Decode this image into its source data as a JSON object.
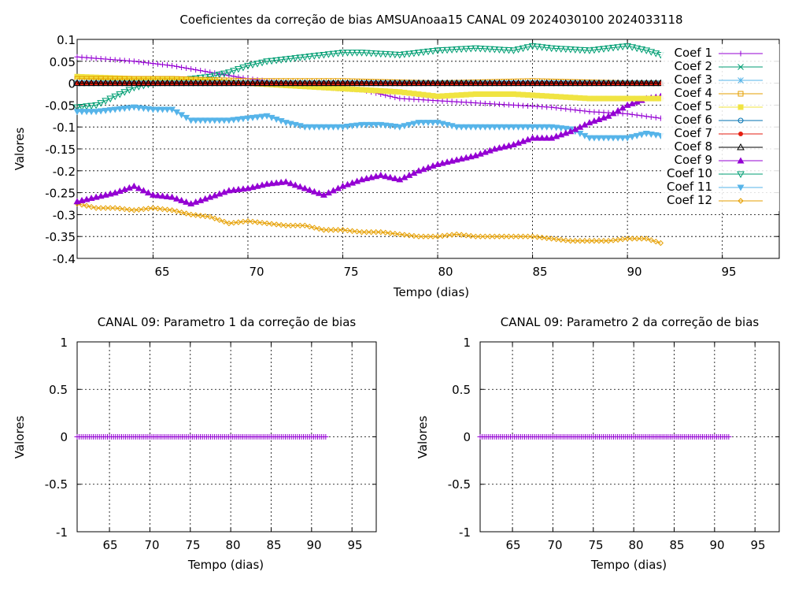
{
  "chart_data": [
    {
      "type": "line",
      "title": "Coeficientes da correção de bias AMSUAnoaa15 CANAL 09 2024030100 2024033118",
      "xlabel": "Tempo (dias)",
      "ylabel": "Valores",
      "xlim": [
        61,
        98
      ],
      "ylim": [
        -0.4,
        0.1
      ],
      "xticks": [
        "65",
        "70",
        "75",
        "80",
        "85",
        "90",
        "95"
      ],
      "yticks": [
        "0.1",
        "0.05",
        "0",
        "-0.05",
        "-0.1",
        "-0.15",
        "-0.2",
        "-0.25",
        "-0.3",
        "-0.35",
        "-0.4"
      ],
      "grid": true,
      "legend_position": "top-right",
      "x_start": 61,
      "x_end": 91.75,
      "x_step": 0.25,
      "series": [
        {
          "name": "Coef 1",
          "color": "#9400d3",
          "marker": "plus",
          "keypoints": [
            [
              61,
              0.06
            ],
            [
              64,
              0.05
            ],
            [
              66,
              0.04
            ],
            [
              68,
              0.025
            ],
            [
              70,
              0.01
            ],
            [
              72,
              0.0
            ],
            [
              74,
              -0.01
            ],
            [
              76,
              -0.015
            ],
            [
              78,
              -0.035
            ],
            [
              80,
              -0.04
            ],
            [
              82,
              -0.045
            ],
            [
              84,
              -0.05
            ],
            [
              86,
              -0.055
            ],
            [
              88,
              -0.065
            ],
            [
              90,
              -0.07
            ],
            [
              91.75,
              -0.08
            ]
          ]
        },
        {
          "name": "Coef 2",
          "color": "#009e73",
          "marker": "x",
          "keypoints": [
            [
              61,
              0.0
            ],
            [
              91.75,
              0.0
            ]
          ]
        },
        {
          "name": "Coef 3",
          "color": "#56b4e9",
          "marker": "star",
          "keypoints": [
            [
              61,
              0.0
            ],
            [
              91.75,
              0.0
            ]
          ]
        },
        {
          "name": "Coef 4",
          "color": "#e69f00",
          "marker": "square-open",
          "keypoints": [
            [
              61,
              0.01
            ],
            [
              66,
              0.01
            ],
            [
              70,
              0.005
            ],
            [
              75,
              0.005
            ],
            [
              80,
              0.0
            ],
            [
              85,
              0.005
            ],
            [
              90,
              0.0
            ],
            [
              91.75,
              0.0
            ]
          ]
        },
        {
          "name": "Coef 5",
          "color": "#f0e442",
          "marker": "square",
          "keypoints": [
            [
              61,
              0.015
            ],
            [
              64,
              0.01
            ],
            [
              66,
              0.01
            ],
            [
              68,
              0.005
            ],
            [
              70,
              0.0
            ],
            [
              72,
              -0.005
            ],
            [
              74,
              -0.01
            ],
            [
              76,
              -0.015
            ],
            [
              78,
              -0.02
            ],
            [
              80,
              -0.03
            ],
            [
              82,
              -0.025
            ],
            [
              84,
              -0.025
            ],
            [
              86,
              -0.03
            ],
            [
              88,
              -0.035
            ],
            [
              90,
              -0.035
            ],
            [
              91.75,
              -0.035
            ]
          ]
        },
        {
          "name": "Coef 6",
          "color": "#0072b2",
          "marker": "circle",
          "keypoints": [
            [
              61,
              0.0
            ],
            [
              91.75,
              0.0
            ]
          ]
        },
        {
          "name": "Coef 7",
          "color": "#e51e10",
          "marker": "circle-filled",
          "keypoints": [
            [
              61,
              0.0
            ],
            [
              91.75,
              0.0
            ]
          ]
        },
        {
          "name": "Coef 8",
          "color": "#000000",
          "marker": "triangle-open",
          "keypoints": [
            [
              61,
              0.0
            ],
            [
              91.75,
              0.0
            ]
          ]
        },
        {
          "name": "Coef 9",
          "color": "#9400d3",
          "marker": "triangle",
          "keypoints": [
            [
              61,
              -0.27
            ],
            [
              62,
              -0.26
            ],
            [
              63,
              -0.25
            ],
            [
              64,
              -0.235
            ],
            [
              65,
              -0.255
            ],
            [
              66,
              -0.26
            ],
            [
              67,
              -0.275
            ],
            [
              68,
              -0.26
            ],
            [
              69,
              -0.245
            ],
            [
              70,
              -0.24
            ],
            [
              71,
              -0.23
            ],
            [
              72,
              -0.225
            ],
            [
              73,
              -0.24
            ],
            [
              74,
              -0.255
            ],
            [
              75,
              -0.235
            ],
            [
              76,
              -0.22
            ],
            [
              77,
              -0.21
            ],
            [
              78,
              -0.22
            ],
            [
              79,
              -0.2
            ],
            [
              80,
              -0.185
            ],
            [
              81,
              -0.175
            ],
            [
              82,
              -0.165
            ],
            [
              83,
              -0.15
            ],
            [
              84,
              -0.14
            ],
            [
              85,
              -0.125
            ],
            [
              86,
              -0.125
            ],
            [
              87,
              -0.11
            ],
            [
              88,
              -0.09
            ],
            [
              89,
              -0.075
            ],
            [
              90,
              -0.05
            ],
            [
              91,
              -0.035
            ],
            [
              91.75,
              -0.03
            ]
          ]
        },
        {
          "name": "Coef 10",
          "color": "#009e73",
          "marker": "triangle-down-open",
          "keypoints": [
            [
              61,
              -0.055
            ],
            [
              62,
              -0.05
            ],
            [
              63,
              -0.03
            ],
            [
              64,
              -0.01
            ],
            [
              65,
              0.0
            ],
            [
              66,
              0.005
            ],
            [
              67,
              0.01
            ],
            [
              68,
              0.015
            ],
            [
              69,
              0.025
            ],
            [
              70,
              0.04
            ],
            [
              71,
              0.05
            ],
            [
              72,
              0.055
            ],
            [
              73,
              0.06
            ],
            [
              74,
              0.065
            ],
            [
              75,
              0.07
            ],
            [
              76,
              0.07
            ],
            [
              78,
              0.065
            ],
            [
              80,
              0.075
            ],
            [
              82,
              0.08
            ],
            [
              84,
              0.075
            ],
            [
              85,
              0.085
            ],
            [
              86,
              0.08
            ],
            [
              88,
              0.075
            ],
            [
              90,
              0.085
            ],
            [
              91,
              0.075
            ],
            [
              91.75,
              0.065
            ]
          ]
        },
        {
          "name": "Coef 11",
          "color": "#56b4e9",
          "marker": "triangle-down",
          "keypoints": [
            [
              61,
              -0.065
            ],
            [
              62,
              -0.065
            ],
            [
              63,
              -0.06
            ],
            [
              64,
              -0.055
            ],
            [
              65,
              -0.06
            ],
            [
              66,
              -0.06
            ],
            [
              67,
              -0.085
            ],
            [
              68,
              -0.085
            ],
            [
              69,
              -0.085
            ],
            [
              70,
              -0.08
            ],
            [
              71,
              -0.075
            ],
            [
              72,
              -0.09
            ],
            [
              73,
              -0.1
            ],
            [
              74,
              -0.1
            ],
            [
              75,
              -0.1
            ],
            [
              76,
              -0.095
            ],
            [
              77,
              -0.095
            ],
            [
              78,
              -0.1
            ],
            [
              79,
              -0.09
            ],
            [
              80,
              -0.09
            ],
            [
              81,
              -0.1
            ],
            [
              82,
              -0.1
            ],
            [
              83,
              -0.1
            ],
            [
              84,
              -0.1
            ],
            [
              85,
              -0.1
            ],
            [
              86,
              -0.1
            ],
            [
              87,
              -0.105
            ],
            [
              88,
              -0.125
            ],
            [
              89,
              -0.125
            ],
            [
              90,
              -0.125
            ],
            [
              91,
              -0.115
            ],
            [
              91.75,
              -0.12
            ]
          ]
        },
        {
          "name": "Coef 12",
          "color": "#e69f00",
          "marker": "diamond-open",
          "keypoints": [
            [
              61,
              -0.275
            ],
            [
              62,
              -0.285
            ],
            [
              63,
              -0.285
            ],
            [
              64,
              -0.29
            ],
            [
              65,
              -0.285
            ],
            [
              66,
              -0.29
            ],
            [
              67,
              -0.3
            ],
            [
              68,
              -0.305
            ],
            [
              69,
              -0.32
            ],
            [
              70,
              -0.315
            ],
            [
              71,
              -0.32
            ],
            [
              72,
              -0.325
            ],
            [
              73,
              -0.325
            ],
            [
              74,
              -0.335
            ],
            [
              75,
              -0.335
            ],
            [
              76,
              -0.34
            ],
            [
              77,
              -0.34
            ],
            [
              78,
              -0.345
            ],
            [
              79,
              -0.35
            ],
            [
              80,
              -0.35
            ],
            [
              81,
              -0.345
            ],
            [
              82,
              -0.35
            ],
            [
              83,
              -0.35
            ],
            [
              84,
              -0.35
            ],
            [
              85,
              -0.35
            ],
            [
              86,
              -0.355
            ],
            [
              87,
              -0.36
            ],
            [
              88,
              -0.36
            ],
            [
              89,
              -0.36
            ],
            [
              90,
              -0.355
            ],
            [
              91,
              -0.355
            ],
            [
              91.75,
              -0.365
            ]
          ]
        }
      ]
    },
    {
      "type": "line",
      "title": "CANAL 09: Parametro 1 da correção de bias",
      "xlabel": "Tempo (dias)",
      "ylabel": "Valores",
      "xlim": [
        61,
        98
      ],
      "ylim": [
        -1,
        1
      ],
      "xticks": [
        "65",
        "70",
        "75",
        "80",
        "85",
        "90",
        "95"
      ],
      "yticks": [
        "1",
        "0.5",
        "0",
        "-0.5",
        "-1"
      ],
      "grid": true,
      "series": [
        {
          "color": "#9400d3",
          "marker": "plus",
          "x_start": 61,
          "x_end": 91.75,
          "x_step": 0.25,
          "value": 0
        }
      ]
    },
    {
      "type": "line",
      "title": "CANAL 09: Parametro 2 da correção de bias",
      "xlabel": "Tempo (dias)",
      "ylabel": "Valores",
      "xlim": [
        61,
        98
      ],
      "ylim": [
        -1,
        1
      ],
      "xticks": [
        "65",
        "70",
        "75",
        "80",
        "85",
        "90",
        "95"
      ],
      "yticks": [
        "1",
        "0.5",
        "0",
        "-0.5",
        "-1"
      ],
      "grid": true,
      "series": [
        {
          "color": "#9400d3",
          "marker": "plus",
          "x_start": 61,
          "x_end": 91.75,
          "x_step": 0.25,
          "value": 0
        }
      ]
    }
  ]
}
